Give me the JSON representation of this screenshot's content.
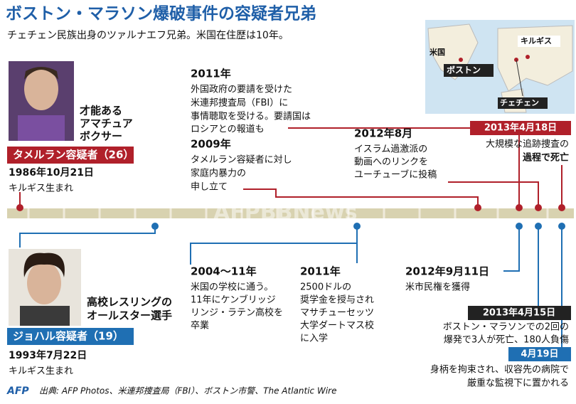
{
  "title": "ボストン・マラソン爆破事件の容疑者兄弟",
  "subtitle": "チェチェン民族出身のツァルナエフ兄弟。米国在住歴は10年。",
  "map": {
    "labels": [
      "米国",
      "ボストン",
      "キルギス",
      "チェチェン"
    ]
  },
  "brothers": [
    {
      "tagline": [
        "才能ある",
        "アマチュア",
        "ボクサー"
      ],
      "name": "タメルラン容疑者（26）",
      "birth_date": "1986年10月21日",
      "birthplace": "キルギス生まれ"
    },
    {
      "tagline": [
        "高校レスリングの",
        "オールスター選手"
      ],
      "name": "ジョハル容疑者（19）",
      "birth_date": "1993年7月22日",
      "birthplace": "キルギス生まれ"
    }
  ],
  "tamerlan_events": [
    {
      "date": "2011年",
      "lines": [
        "外国政府の要請を受けた",
        "米連邦捜査局（FBI）に",
        "事情聴取を受ける。要請国は",
        "ロシアとの報道も"
      ]
    },
    {
      "date": "2009年",
      "lines": [
        "タメルラン容疑者に対し",
        "家庭内暴力の",
        "申し立て"
      ]
    },
    {
      "date": "2012年8月",
      "lines": [
        "イスラム過激派の",
        "動画へのリンクを",
        "ユーチューブに投稿"
      ]
    },
    {
      "date": "2013年4月18日",
      "lines": [
        "大規模な追跡捜査の",
        "過程で死亡"
      ]
    }
  ],
  "dzhokhar_events": [
    {
      "date": "2004～11年",
      "lines": [
        "米国の学校に通う。",
        "11年にケンブリッジ",
        "リンジ・ラテン高校を",
        "卒業"
      ]
    },
    {
      "date": "2011年",
      "lines": [
        "2500ドルの",
        "奨学金を授与され",
        "マサチューセッツ",
        "大学ダートマス校",
        "に入学"
      ]
    },
    {
      "date": "2012年9月11日",
      "lines": [
        "米市民権を獲得"
      ]
    },
    {
      "date": "2013年4月15日",
      "lines": [
        "ボストン・マラソンでの2回の",
        "爆発で3人が死亡、180人負傷"
      ]
    },
    {
      "date": "4月19日",
      "lines": [
        "身柄を拘束され、収容先の病院で",
        "厳重な監視下に置かれる"
      ]
    }
  ],
  "watermark": "AFPBBNews",
  "footer": {
    "logo": "AFP",
    "source": "出典: AFP Photos、米連邦捜査局（FBI）、ボストン市警、The Atlantic Wire"
  }
}
